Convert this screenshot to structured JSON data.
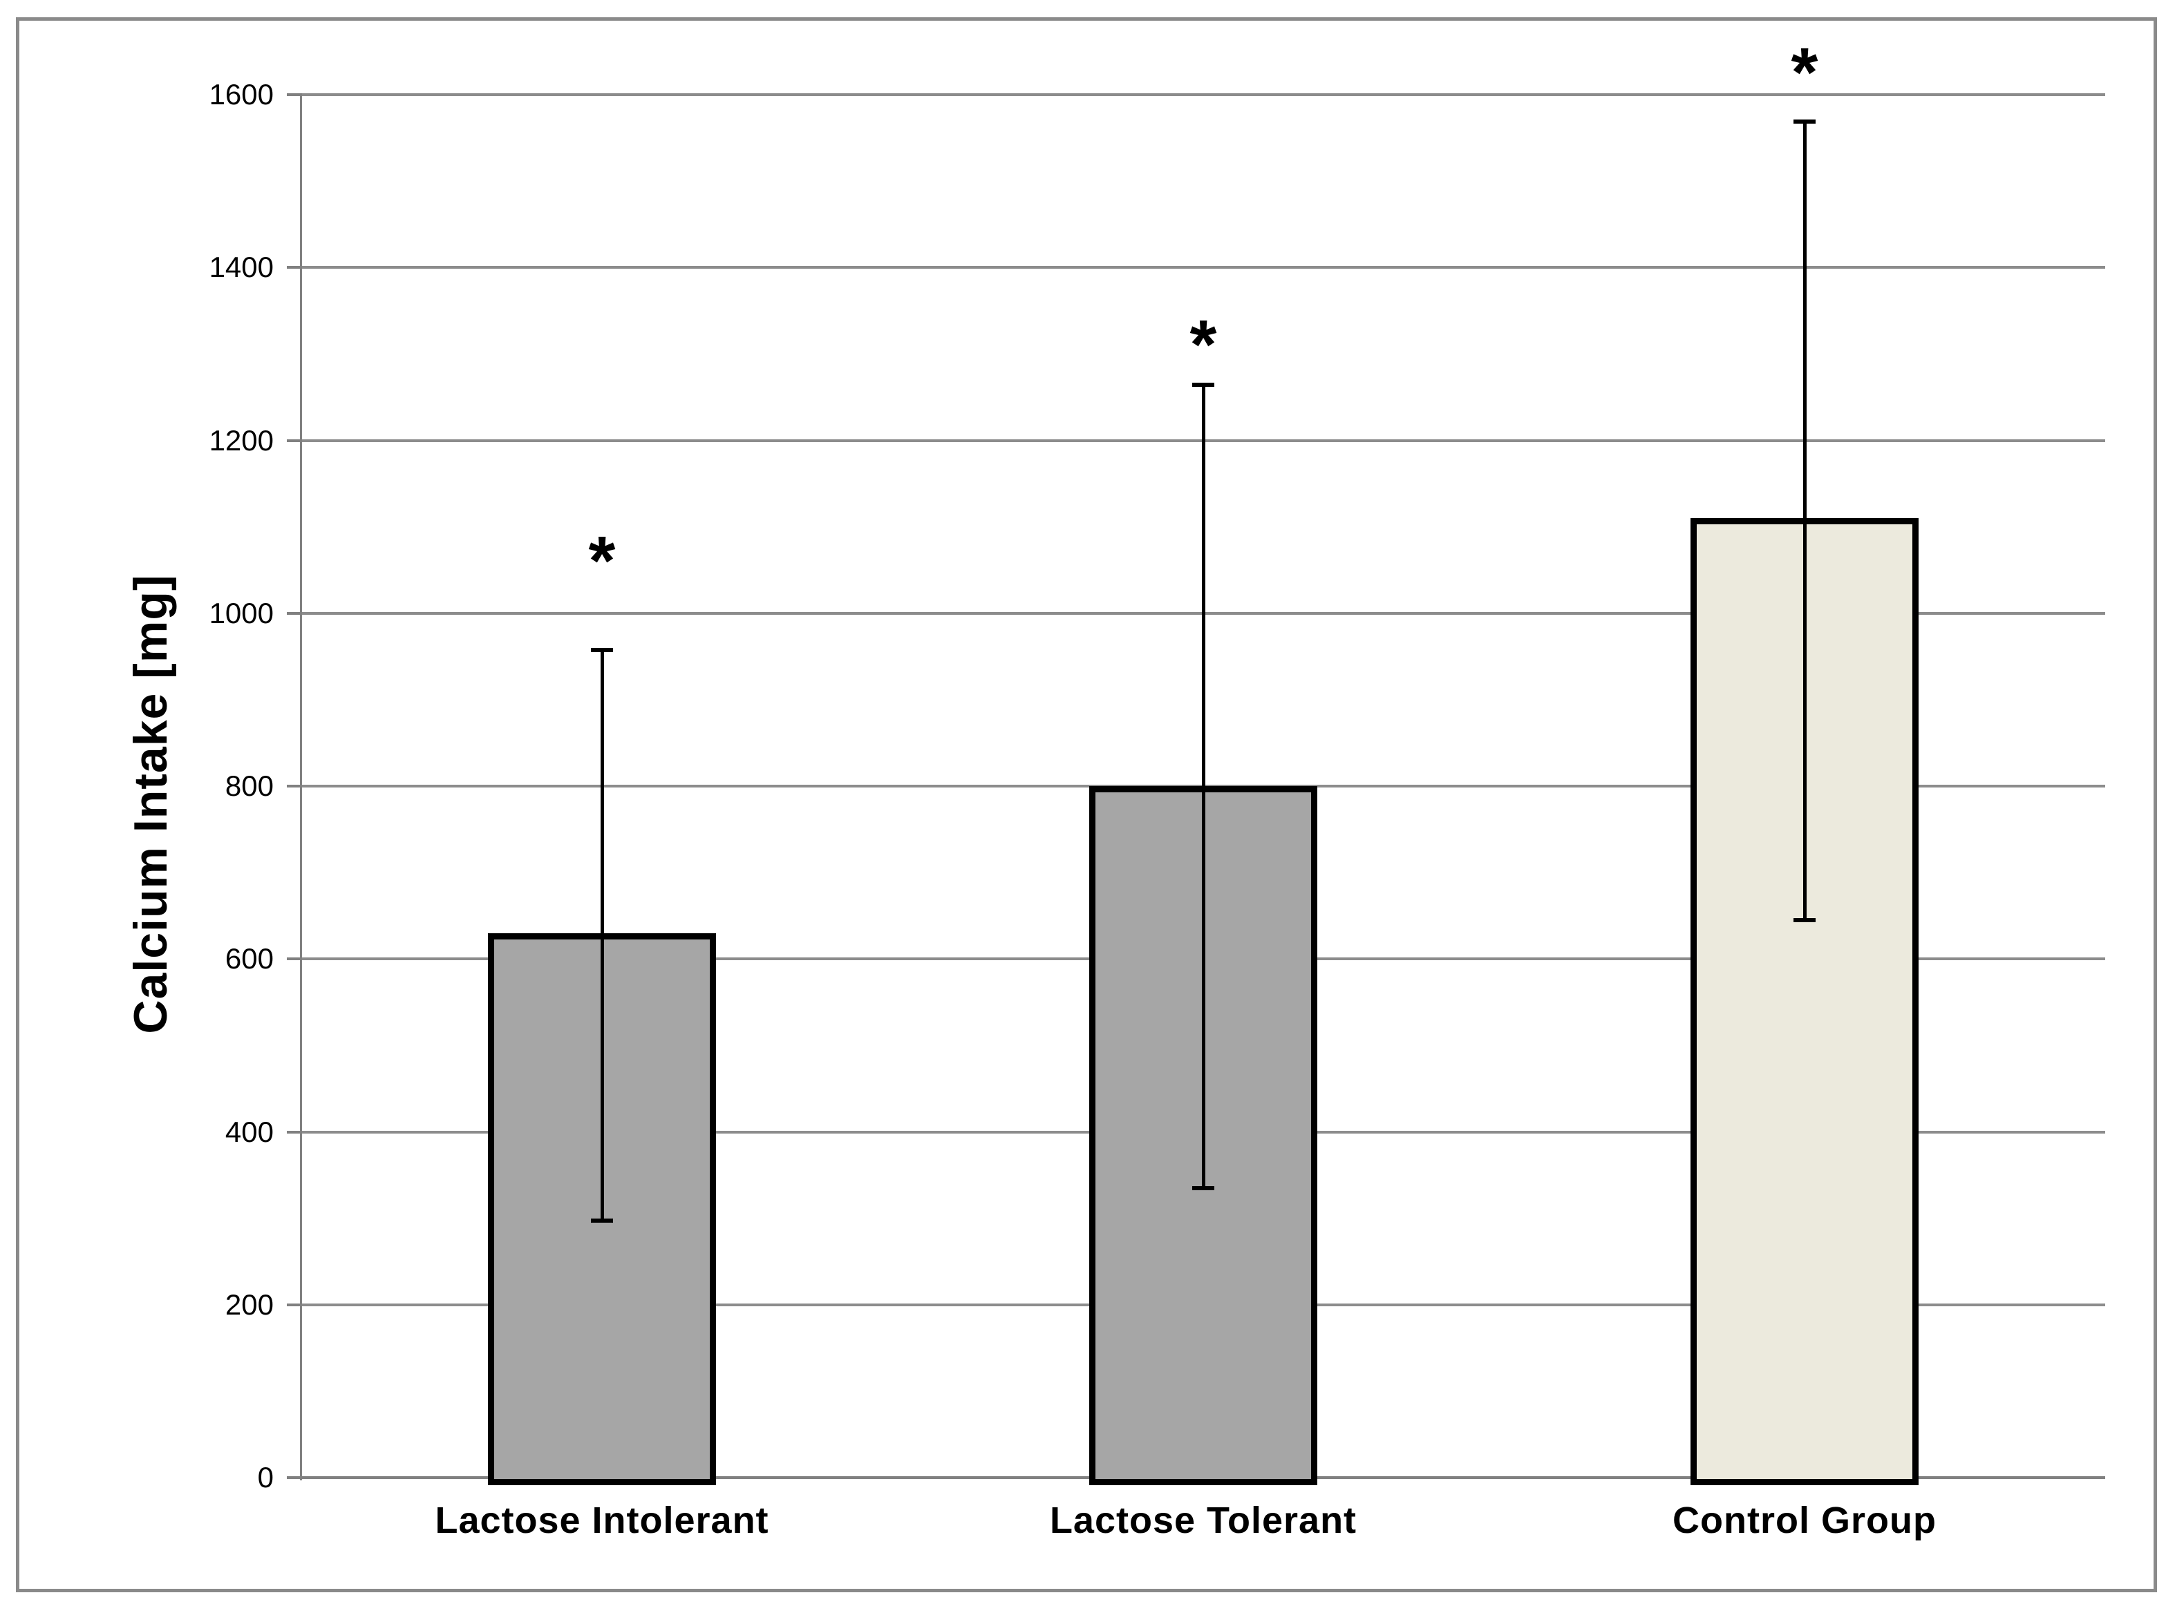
{
  "figure": {
    "background": "#ffffff",
    "border_color": "#8a8a8a"
  },
  "chart_data": {
    "type": "bar",
    "title": "",
    "xlabel": "",
    "ylabel": "Calcium Intake [mg]",
    "ylim": [
      0,
      1600
    ],
    "ytick_interval": 200,
    "ytick_labels": [
      "0",
      "200",
      "400",
      "600",
      "800",
      "1000",
      "1200",
      "1400",
      "1600"
    ],
    "grid": "horizontal-only",
    "legend": "none",
    "categories": [
      "Lactose Intolerant",
      "Lactose Tolerant",
      "Control Group"
    ],
    "values": [
      630,
      800,
      1110
    ],
    "error_low": [
      297,
      335,
      645
    ],
    "error_high": [
      958,
      1265,
      1570
    ],
    "significance_markers": [
      "*",
      "*",
      "*"
    ],
    "marker_y_values": [
      1070,
      1320,
      1635
    ],
    "bar_colors": [
      "#a6a6a6",
      "#a6a6a6",
      "#eceadd"
    ],
    "bar_border_color": "#000000",
    "gridline_color": "#8c8c8c",
    "axis_color": "#808080",
    "text_color": "#000000"
  }
}
